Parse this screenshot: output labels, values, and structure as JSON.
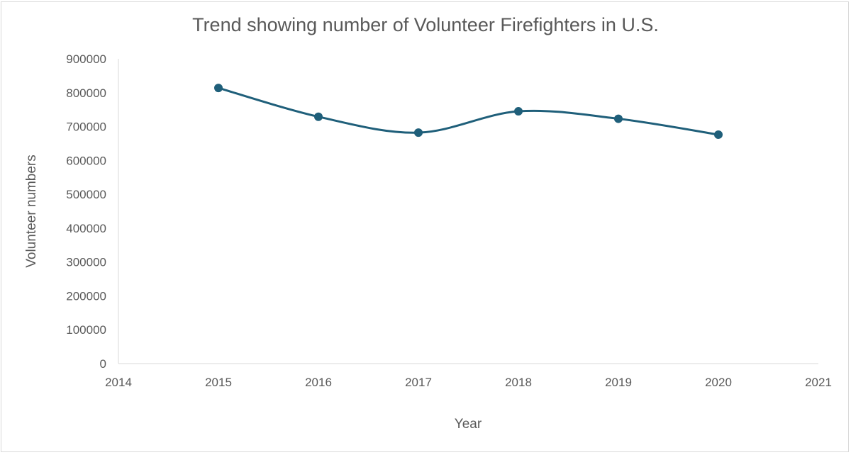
{
  "chart_data": {
    "type": "line",
    "title": "Trend showing number of Volunteer Firefighters in U.S.",
    "xlabel": "Year",
    "ylabel": "Volunteer numbers",
    "x": [
      2015,
      2016,
      2017,
      2018,
      2019,
      2020
    ],
    "series": [
      {
        "values": [
          814000,
          729000,
          682000,
          745000,
          723000,
          676000
        ]
      }
    ],
    "xlim": [
      2014,
      2021
    ],
    "ylim": [
      0,
      900000
    ],
    "xticks": [
      "2014",
      "2015",
      "2016",
      "2017",
      "2018",
      "2019",
      "2020",
      "2021"
    ],
    "yticks": [
      "0",
      "100000",
      "200000",
      "300000",
      "400000",
      "500000",
      "600000",
      "700000",
      "800000",
      "900000"
    ],
    "smooth": true,
    "markers": true,
    "grid": false,
    "legend": "none",
    "line_color": "#1f5f7a"
  }
}
